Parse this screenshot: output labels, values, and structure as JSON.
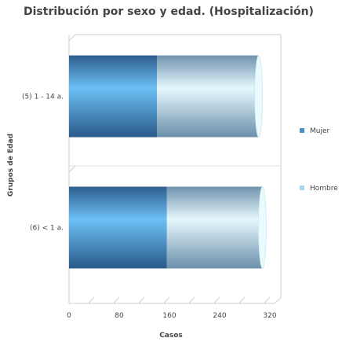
{
  "chart_data": {
    "type": "bar",
    "orientation": "horizontal",
    "stacked": true,
    "title": "Distribución por sexo y edad. (Hospitalización)",
    "xlabel": "Casos",
    "ylabel": "Grupos de Edad",
    "categories": [
      "(5) 1 - 14 a.",
      "(6) < 1 a."
    ],
    "series": [
      {
        "name": "Mujer",
        "values": [
          140,
          156
        ],
        "color": "#4a90c4"
      },
      {
        "name": "Hombre",
        "values": [
          162,
          152
        ],
        "color": "#a8d4f0"
      }
    ],
    "xlim": [
      0,
      320
    ],
    "xticks": [
      "0",
      "80",
      "160",
      "240",
      "320"
    ],
    "grid": true,
    "legend_position": "right"
  }
}
